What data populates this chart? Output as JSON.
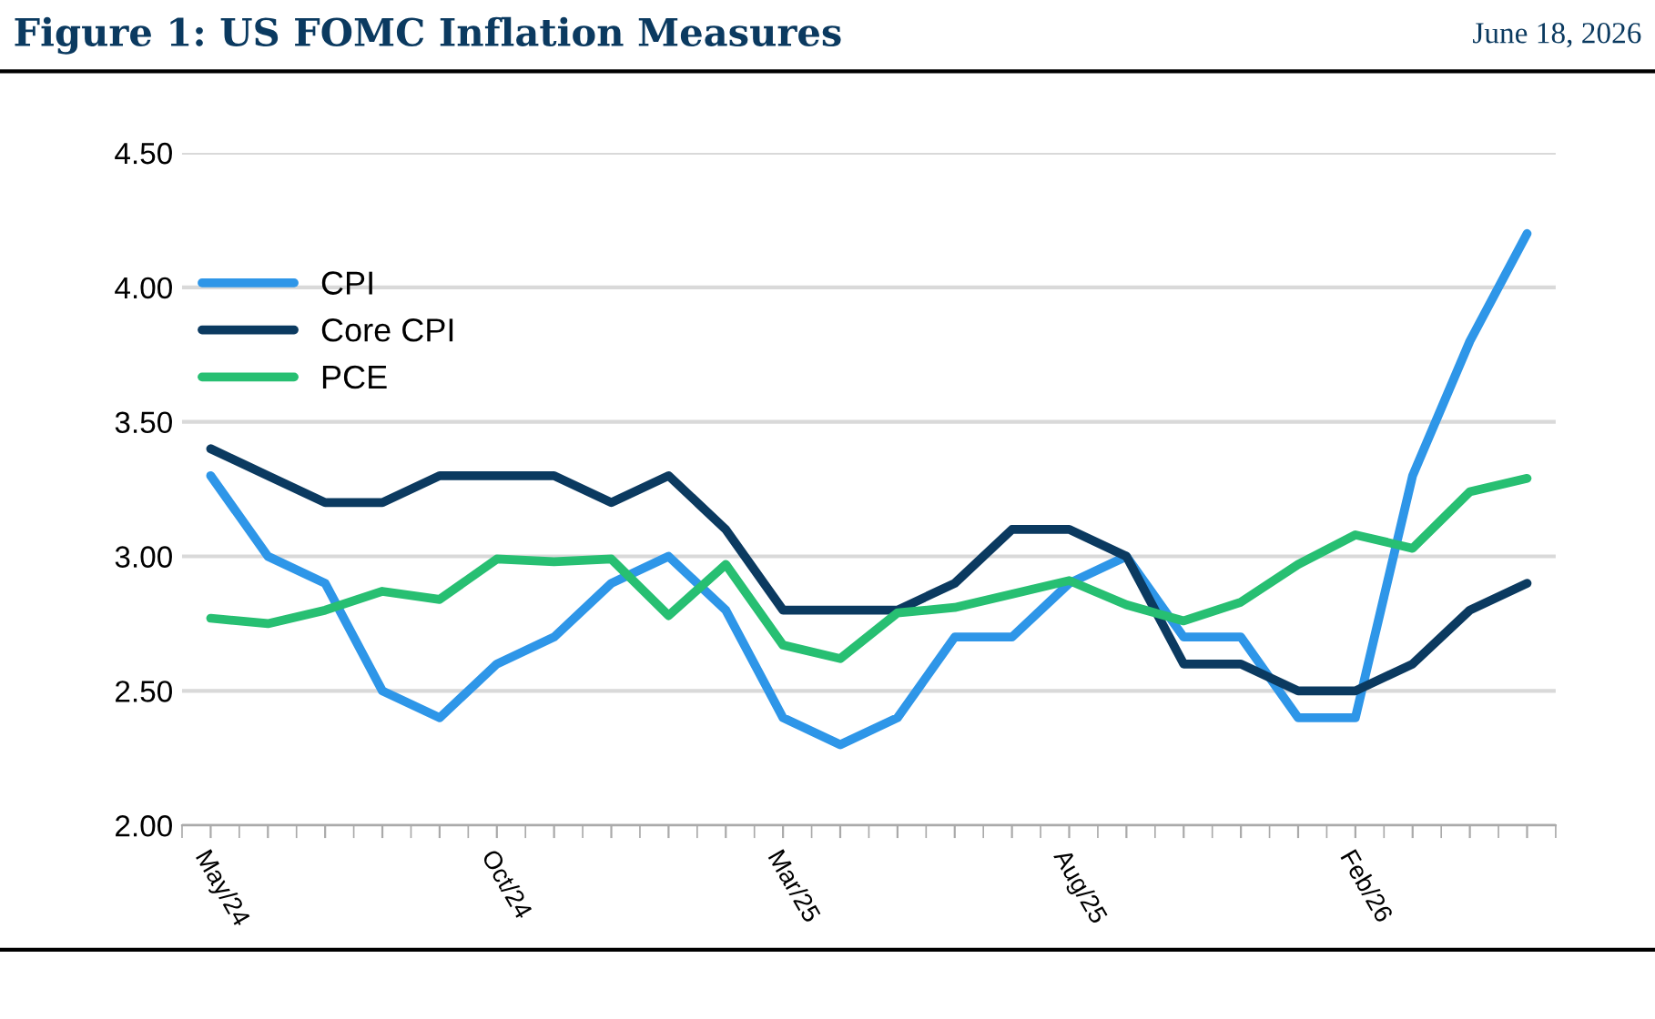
{
  "chart_data": {
    "type": "line",
    "title": "Figure 1: US FOMC Inflation Measures",
    "subtitle": "June 18, 2026",
    "categories": [
      "May/24",
      null,
      null,
      null,
      null,
      "Oct/24",
      null,
      null,
      null,
      null,
      "Mar/25",
      null,
      null,
      null,
      null,
      "Aug/25",
      null,
      null,
      null,
      null,
      "Feb/26",
      null,
      null,
      null
    ],
    "series": [
      {
        "name": "CPI",
        "color": "#2e96e8",
        "values": [
          3.3,
          3.0,
          2.9,
          2.5,
          2.4,
          2.6,
          2.7,
          2.9,
          3.0,
          2.8,
          2.4,
          2.3,
          2.4,
          2.7,
          2.7,
          2.9,
          3.0,
          2.7,
          2.7,
          2.4,
          2.4,
          3.3,
          3.8,
          4.2
        ]
      },
      {
        "name": "Core CPI",
        "color": "#0b3a60",
        "values": [
          3.4,
          3.3,
          3.2,
          3.2,
          3.3,
          3.3,
          3.3,
          3.2,
          3.3,
          3.1,
          2.8,
          2.8,
          2.8,
          2.9,
          3.1,
          3.1,
          3.0,
          2.6,
          2.6,
          2.5,
          2.5,
          2.6,
          2.8,
          2.9
        ]
      },
      {
        "name": "PCE",
        "color": "#27bf72",
        "values": [
          2.77,
          2.75,
          2.8,
          2.87,
          2.84,
          2.99,
          2.98,
          2.99,
          2.78,
          2.97,
          2.67,
          2.62,
          2.79,
          2.81,
          2.86,
          2.91,
          2.82,
          2.76,
          2.83,
          2.97,
          3.08,
          3.03,
          3.24,
          3.29
        ]
      }
    ],
    "ylim": [
      2.0,
      4.5
    ],
    "yticks": [
      {
        "value": 2.0,
        "label": "2.00"
      },
      {
        "value": 2.5,
        "label": "2.50"
      },
      {
        "value": 3.0,
        "label": "3.00"
      },
      {
        "value": 3.5,
        "label": "3.50"
      },
      {
        "value": 4.0,
        "label": "4.00"
      },
      {
        "value": 4.5,
        "label": "4.50"
      }
    ],
    "grid": "y",
    "legend": "top left",
    "marker": "none",
    "line_style": "solid"
  }
}
